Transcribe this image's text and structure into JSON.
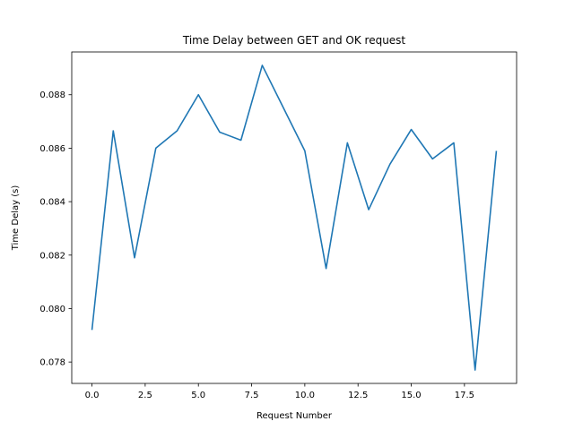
{
  "chart_data": {
    "type": "line",
    "title": "Time Delay between GET and OK request",
    "xlabel": "Request Number",
    "ylabel": "Time Delay (s)",
    "xlim": [
      -0.95,
      19.95
    ],
    "ylim": [
      0.0772,
      0.0896
    ],
    "xticks": [
      0.0,
      2.5,
      5.0,
      7.5,
      10.0,
      12.5,
      15.0,
      17.5
    ],
    "xtick_labels": [
      "0.0",
      "2.5",
      "5.0",
      "7.5",
      "10.0",
      "12.5",
      "15.0",
      "17.5"
    ],
    "yticks": [
      0.078,
      0.08,
      0.082,
      0.084,
      0.086,
      0.088
    ],
    "ytick_labels": [
      "0.078",
      "0.080",
      "0.082",
      "0.084",
      "0.086",
      "0.088"
    ],
    "grid": false,
    "line_color": "#1f77b4",
    "series": [
      {
        "x": [
          0,
          1,
          2,
          3,
          4,
          5,
          6,
          7,
          8,
          9,
          10,
          11,
          12,
          13,
          14,
          15,
          16,
          17,
          18,
          19
        ],
        "values": [
          0.0792,
          0.08665,
          0.0819,
          0.086,
          0.08665,
          0.088,
          0.0866,
          0.0863,
          0.0891,
          0.0875,
          0.0859,
          0.0815,
          0.0862,
          0.0837,
          0.0854,
          0.0867,
          0.0856,
          0.0862,
          0.0777,
          0.0859
        ]
      }
    ]
  }
}
